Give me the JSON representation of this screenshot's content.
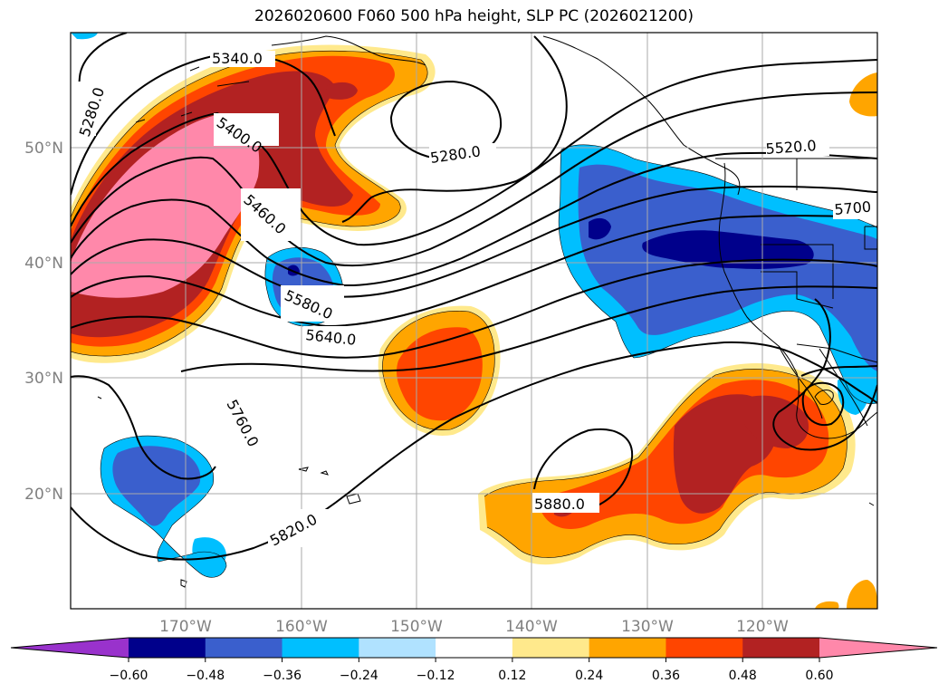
{
  "title": "2026020600 F060 500 hPa height, SLP PC (2026021200)",
  "lat_labels": [
    "50°N",
    "40°N",
    "30°N",
    "20°N"
  ],
  "lon_labels": [
    "170°W",
    "160°W",
    "150°W",
    "140°W",
    "130°W",
    "120°W"
  ],
  "contour_labels": [
    "5340.0",
    "5280.0",
    "5400.0",
    "5460.0",
    "5280.0",
    "5520.0",
    "5700",
    "5580.0",
    "5640.0",
    "5760.0",
    "5820.0",
    "5880.0"
  ],
  "colorbar": {
    "ticks": [
      "−0.60",
      "−0.48",
      "−0.36",
      "−0.24",
      "−0.12",
      "0.12",
      "0.24",
      "0.36",
      "0.48",
      "0.60"
    ],
    "colors": [
      "#9932cc",
      "#00008b",
      "#3a5fcd",
      "#00bfff",
      "#b0e2ff",
      "#ffffff",
      "#ffe98c",
      "#ffa500",
      "#ff4500",
      "#b22222",
      "#ff88aa"
    ]
  },
  "colors": {
    "pink": "#ff88aa",
    "darkred": "#b22222",
    "red": "#ff4500",
    "orange": "#ffa500",
    "yellow": "#ffe98c",
    "lightblue": "#b0e2ff",
    "cyan": "#00bfff",
    "blue": "#3a5fcd",
    "navy": "#00008b"
  }
}
